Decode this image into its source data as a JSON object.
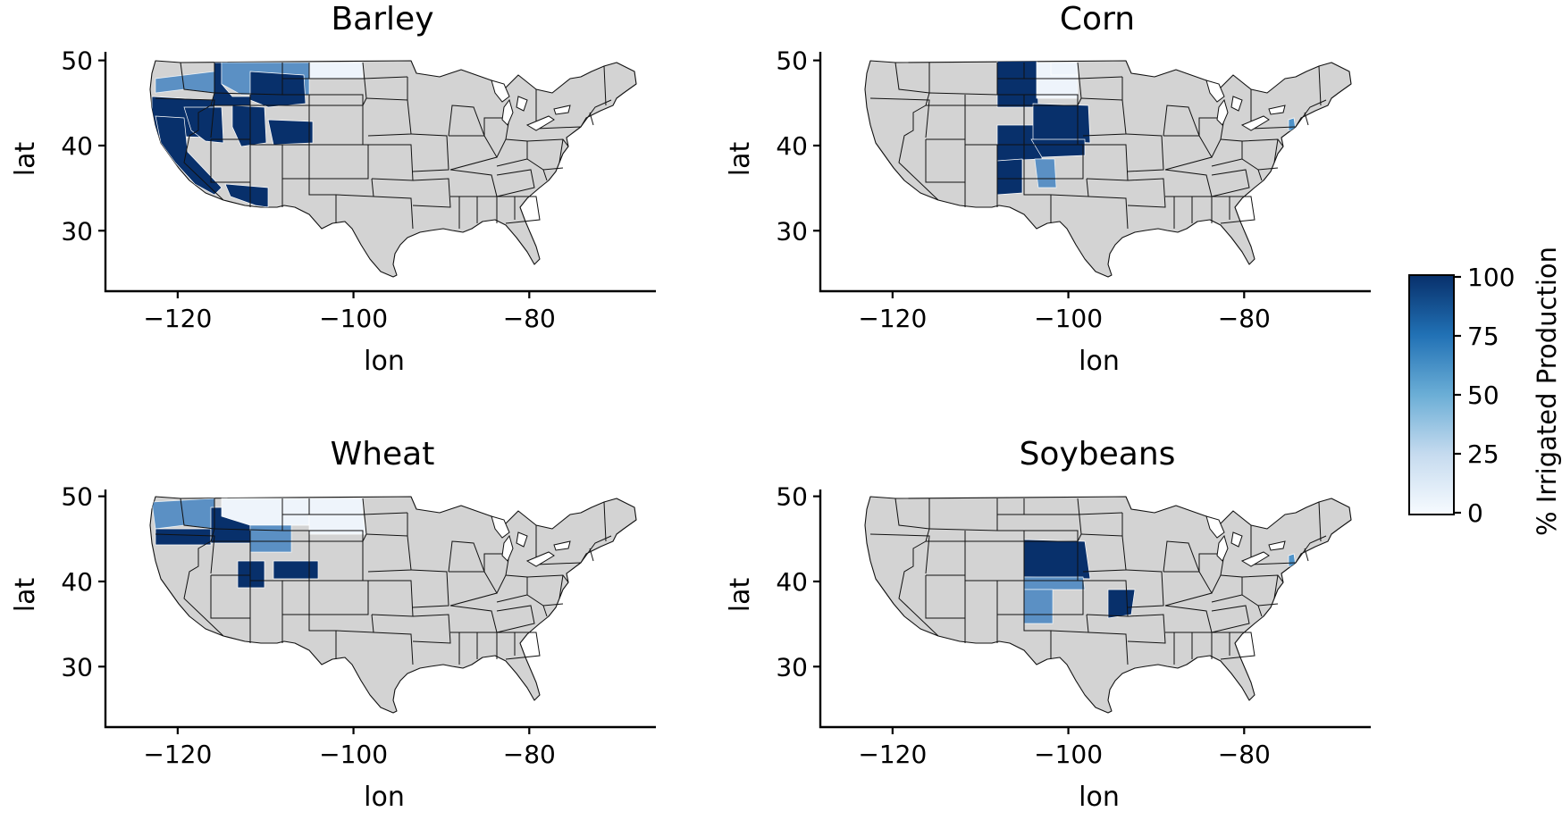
{
  "colorbar": {
    "label": "% Irrigated Production",
    "ticks": [
      "100",
      "75",
      "50",
      "25",
      "0"
    ],
    "colors": [
      "#f7fbff",
      "#c6dbef",
      "#6baed6",
      "#2171b5",
      "#08306b"
    ]
  },
  "colors": {
    "no_data": "#d3d3d3",
    "low": "#eef4fb",
    "light": "#a8cbe6",
    "mid": "#4f93c9",
    "high": "#1c5fa8",
    "dark": "#08306b"
  },
  "panels": [
    {
      "title": "Barley",
      "xlabel": "lon",
      "ylabel": "lat",
      "xticks": [
        "−120",
        "−100",
        "−80"
      ],
      "yticks": [
        "50",
        "40",
        "30"
      ],
      "regions": [
        {
          "name": "Washington",
          "level": "mixed"
        },
        {
          "name": "Oregon",
          "level": "high"
        },
        {
          "name": "California",
          "level": "high"
        },
        {
          "name": "Idaho",
          "level": "high"
        },
        {
          "name": "Nevada",
          "level": "high"
        },
        {
          "name": "Utah",
          "level": "high"
        },
        {
          "name": "Arizona",
          "level": "high"
        },
        {
          "name": "Montana",
          "level": "mixed"
        },
        {
          "name": "Wyoming",
          "level": "high"
        },
        {
          "name": "Colorado",
          "level": "high"
        },
        {
          "name": "North Dakota",
          "level": "low"
        }
      ]
    },
    {
      "title": "Corn",
      "xlabel": "lon",
      "ylabel": "lat",
      "xticks": [
        "−120",
        "−100",
        "−80"
      ],
      "yticks": [
        "50",
        "40",
        "30"
      ],
      "regions": [
        {
          "name": "Wyoming",
          "level": "high"
        },
        {
          "name": "Colorado",
          "level": "high"
        },
        {
          "name": "Nebraska",
          "level": "high"
        },
        {
          "name": "Kansas",
          "level": "high"
        },
        {
          "name": "South Dakota",
          "level": "low"
        },
        {
          "name": "North Dakota",
          "level": "low"
        },
        {
          "name": "New Mexico",
          "level": "high"
        },
        {
          "name": "Texas",
          "level": "mixed"
        },
        {
          "name": "Delaware",
          "level": "mid"
        }
      ]
    },
    {
      "title": "Wheat",
      "xlabel": "lon",
      "ylabel": "lat",
      "xticks": [
        "−120",
        "−100",
        "−80"
      ],
      "yticks": [
        "50",
        "40",
        "30"
      ],
      "regions": [
        {
          "name": "Washington",
          "level": "mixed"
        },
        {
          "name": "Oregon",
          "level": "high"
        },
        {
          "name": "Idaho",
          "level": "high"
        },
        {
          "name": "Montana",
          "level": "low"
        },
        {
          "name": "Wyoming",
          "level": "mixed"
        },
        {
          "name": "Utah",
          "level": "high"
        },
        {
          "name": "Colorado",
          "level": "high"
        },
        {
          "name": "North Dakota",
          "level": "low"
        },
        {
          "name": "South Dakota",
          "level": "low"
        }
      ]
    },
    {
      "title": "Soybeans",
      "xlabel": "lon",
      "ylabel": "lat",
      "xticks": [
        "−120",
        "−100",
        "−80"
      ],
      "yticks": [
        "50",
        "40",
        "30"
      ],
      "regions": [
        {
          "name": "Nebraska",
          "level": "high"
        },
        {
          "name": "Kansas",
          "level": "mixed"
        },
        {
          "name": "Texas",
          "level": "mixed"
        },
        {
          "name": "Arkansas",
          "level": "high"
        },
        {
          "name": "Delaware",
          "level": "mid"
        }
      ]
    }
  ]
}
